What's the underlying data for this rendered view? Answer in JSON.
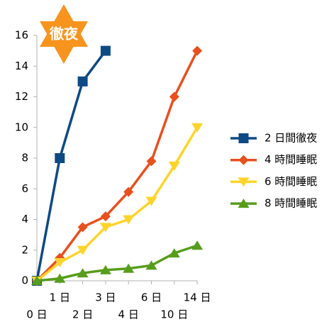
{
  "chart_data": {
    "type": "line",
    "annotation": "徹夜",
    "categories": [
      "0 日",
      "1 日",
      "2 日",
      "3 日",
      "4 日",
      "6 日",
      "10 日",
      "14 日"
    ],
    "series": [
      {
        "name": "2 日間徹夜",
        "color": "#0e4a84",
        "marker": "square",
        "values": [
          0,
          8,
          13,
          15,
          null,
          null,
          null,
          null
        ]
      },
      {
        "name": "4 時間睡眠",
        "color": "#e8501e",
        "marker": "diamond",
        "values": [
          0,
          1.5,
          3.5,
          4.2,
          5.8,
          7.8,
          12,
          15
        ]
      },
      {
        "name": "6 時間睡眠",
        "color": "#ffd42a",
        "marker": "triangle-down",
        "values": [
          0,
          1.2,
          2.0,
          3.5,
          4.0,
          5.2,
          7.5,
          10
        ]
      },
      {
        "name": "8 時間睡眠",
        "color": "#579d1c",
        "marker": "triangle-up",
        "values": [
          0,
          0.15,
          0.5,
          0.7,
          0.8,
          1.0,
          1.8,
          2.3
        ]
      }
    ],
    "ylim": [
      0,
      16
    ],
    "yticks": [
      0,
      2,
      4,
      6,
      8,
      10,
      12,
      14,
      16
    ],
    "grid": false,
    "legend": "right"
  }
}
